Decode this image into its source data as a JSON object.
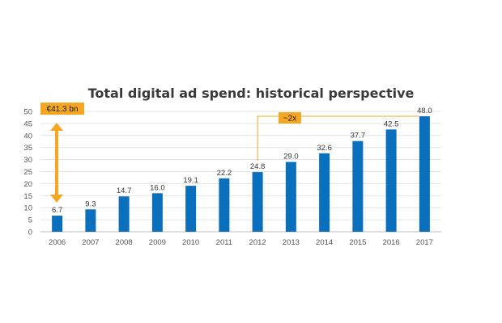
{
  "chart_data": {
    "type": "bar",
    "title": "Total digital ad spend: historical perspective",
    "categories": [
      "2006",
      "2007",
      "2008",
      "2009",
      "2010",
      "2011",
      "2012",
      "2013",
      "2014",
      "2015",
      "2016",
      "2017"
    ],
    "values": [
      6.7,
      9.3,
      14.7,
      16.0,
      19.1,
      22.2,
      24.8,
      29.0,
      32.6,
      37.7,
      42.5,
      48.0
    ],
    "value_labels": [
      "6.7",
      "9.3",
      "14.7",
      "16.0",
      "19.1",
      "22.2",
      "24.8",
      "29.0",
      "32.6",
      "37.7",
      "42.5",
      "48.0"
    ],
    "ylim": [
      0,
      50
    ],
    "yticks": [
      0,
      5,
      10,
      15,
      20,
      25,
      30,
      35,
      40,
      45,
      50
    ],
    "grid": true,
    "xlabel": "",
    "ylabel": "",
    "bar_color": "#0a6fbd",
    "annotations": [
      {
        "label": "€41.3 bn",
        "type": "double-arrow",
        "from": 6.7,
        "to": 48.0,
        "color": "#f5a623"
      },
      {
        "label": "~2x",
        "type": "bracket",
        "from_category": "2012",
        "to_category": "2017",
        "color": "#f5a623"
      }
    ]
  }
}
